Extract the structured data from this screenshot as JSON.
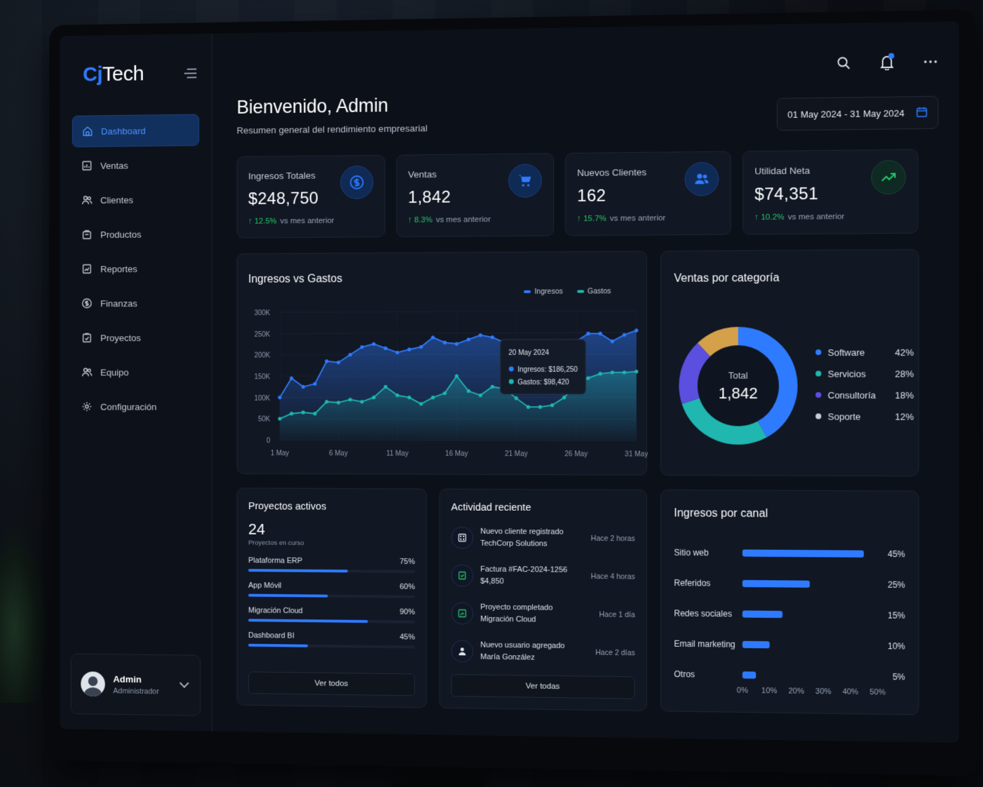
{
  "app": {
    "logo_c": "Cj",
    "logo_t": "Tech"
  },
  "sidebar": {
    "items": [
      {
        "label": "Dashboard",
        "icon": "home-icon",
        "active": true
      },
      {
        "label": "Ventas",
        "icon": "chart-icon"
      },
      {
        "label": "Clientes",
        "icon": "users-icon"
      },
      {
        "label": "Productos",
        "icon": "box-icon"
      },
      {
        "label": "Reportes",
        "icon": "report-icon"
      },
      {
        "label": "Finanzas",
        "icon": "dollar-icon"
      },
      {
        "label": "Proyectos",
        "icon": "clipboard-icon"
      },
      {
        "label": "Equipo",
        "icon": "team-icon"
      },
      {
        "label": "Configuración",
        "icon": "gear-icon"
      }
    ],
    "user": {
      "name": "Admin",
      "role": "Administrador"
    }
  },
  "header": {
    "title": "Bienvenido, Admin",
    "subtitle": "Resumen general del rendimiento empresarial",
    "date_range": "01 May 2024 - 31 May 2024"
  },
  "kpis": [
    {
      "label": "Ingresos Totales",
      "value": "$248,750",
      "change": "12.5%",
      "suffix": "vs mes anterior",
      "icon": "dollar-circle-icon"
    },
    {
      "label": "Ventas",
      "value": "1,842",
      "change": "8.3%",
      "suffix": "vs mes anterior",
      "icon": "cart-icon"
    },
    {
      "label": "Nuevos Clientes",
      "value": "162",
      "change": "15.7%",
      "suffix": "vs mes anterior",
      "icon": "users-icon"
    },
    {
      "label": "Utilidad Neta",
      "value": "$74,351",
      "change": "10.2%",
      "suffix": "vs mes anterior",
      "icon": "trend-up-icon"
    }
  ],
  "colors": {
    "accent": "#2f7bff",
    "teal": "#1fb7b0",
    "purple": "#5b4fe0",
    "gold": "#d4a04a",
    "positive": "#27c46b"
  },
  "chart_data": [
    {
      "type": "area",
      "title": "Ingresos vs Gastos",
      "x": [
        "1 May",
        "2 May",
        "3 May",
        "4 May",
        "5 May",
        "6 May",
        "7 May",
        "8 May",
        "9 May",
        "10 May",
        "11 May",
        "12 May",
        "13 May",
        "14 May",
        "15 May",
        "16 May",
        "17 May",
        "18 May",
        "19 May",
        "20 May",
        "21 May",
        "22 May",
        "23 May",
        "24 May",
        "25 May",
        "26 May",
        "27 May",
        "28 May",
        "29 May",
        "30 May",
        "31 May"
      ],
      "xticks": [
        "1 May",
        "6 May",
        "11 May",
        "16 May",
        "21 May",
        "26 May",
        "31 May"
      ],
      "yticks": [
        "0",
        "50K",
        "100K",
        "150K",
        "200K",
        "250K",
        "300K"
      ],
      "ylim": [
        0,
        300000
      ],
      "series": [
        {
          "name": "Ingresos",
          "color": "#2f7bff",
          "values": [
            100000,
            145000,
            125000,
            132000,
            185000,
            182000,
            200000,
            218000,
            225000,
            215000,
            205000,
            212000,
            218000,
            240000,
            228000,
            225000,
            235000,
            245000,
            240000,
            228000,
            186250,
            175000,
            170000,
            168000,
            218000,
            230000,
            248000,
            248000,
            230000,
            245000,
            255000
          ]
        },
        {
          "name": "Gastos",
          "color": "#1fb7b0",
          "values": [
            50000,
            62000,
            65000,
            62000,
            90000,
            88000,
            95000,
            90000,
            100000,
            125000,
            105000,
            100000,
            85000,
            100000,
            110000,
            150000,
            115000,
            105000,
            125000,
            120000,
            98420,
            78000,
            78000,
            82000,
            100000,
            130000,
            145000,
            155000,
            158000,
            158000,
            160000
          ]
        }
      ],
      "tooltip": {
        "date": "20 May 2024",
        "ingresos": "Ingresos: $186,250",
        "gastos": "Gastos: $98,420"
      }
    },
    {
      "type": "pie",
      "title": "Ventas por categoría",
      "center_label": "Total",
      "center_value": "1,842",
      "slices": [
        {
          "name": "Software",
          "value": 42,
          "pct": "42%",
          "color": "#2f7bff"
        },
        {
          "name": "Servicios",
          "value": 28,
          "pct": "28%",
          "color": "#1fb7b0"
        },
        {
          "name": "Consultoría",
          "value": 18,
          "pct": "18%",
          "color": "#5b4fe0"
        },
        {
          "name": "Soporte",
          "value": 12,
          "pct": "12%",
          "color": "#d4a04a"
        }
      ]
    },
    {
      "type": "bar",
      "title": "Ingresos por canal",
      "categories": [
        "Sitio web",
        "Referidos",
        "Redes sociales",
        "Email marketing",
        "Otros"
      ],
      "values": [
        45,
        25,
        15,
        10,
        5
      ],
      "labels": [
        "45%",
        "25%",
        "15%",
        "10%",
        "5%"
      ],
      "xticks": [
        "0%",
        "10%",
        "20%",
        "30%",
        "40%",
        "50%"
      ],
      "xlim": [
        0,
        50
      ]
    }
  ],
  "projects": {
    "title": "Proyectos activos",
    "count": "24",
    "count_label": "Proyectos en curso",
    "items": [
      {
        "name": "Plataforma ERP",
        "pct": "75%",
        "value": 75
      },
      {
        "name": "App Móvil",
        "pct": "60%",
        "value": 60
      },
      {
        "name": "Migración Cloud",
        "pct": "90%",
        "value": 90
      },
      {
        "name": "Dashboard BI",
        "pct": "45%",
        "value": 45
      }
    ],
    "button": "Ver todos"
  },
  "activity": {
    "title": "Actividad reciente",
    "items": [
      {
        "line1": "Nuevo cliente registrado",
        "line2": "TechCorp Solutions",
        "time": "Hace 2 horas",
        "icon": "building-icon"
      },
      {
        "line1": "Factura #FAC-2024-1256",
        "line2": "$4,850",
        "time": "Hace 4 horas",
        "icon": "invoice-icon"
      },
      {
        "line1": "Proyecto completado",
        "line2": "Migración Cloud",
        "time": "Hace 1 día",
        "icon": "check-icon"
      },
      {
        "line1": "Nuevo usuario agregado",
        "line2": "María González",
        "time": "Hace 2 días",
        "icon": "user-icon"
      }
    ],
    "button": "Ver todas"
  }
}
